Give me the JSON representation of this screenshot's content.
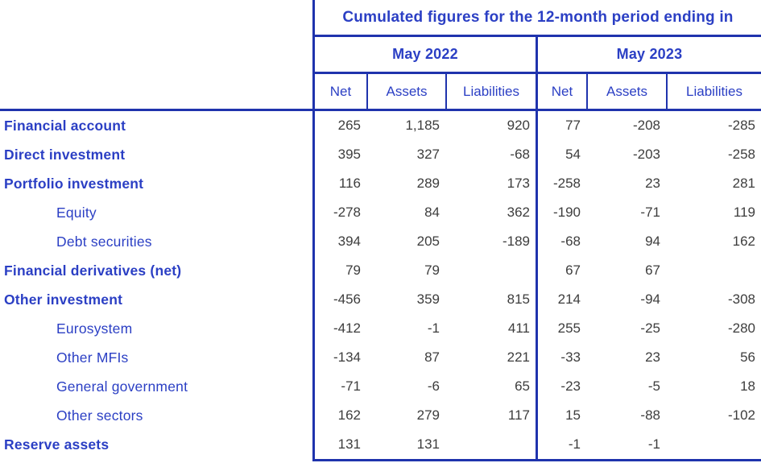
{
  "table": {
    "title": "Cumulated figures for the 12-month period ending in",
    "periods": [
      {
        "label": "May 2022"
      },
      {
        "label": "May 2023"
      }
    ],
    "columns": [
      "Net",
      "Assets",
      "Liabilities"
    ]
  },
  "rows": [
    {
      "label": "Financial account",
      "cells": [
        "265",
        "1,185",
        "920",
        "77",
        "-208",
        "-285"
      ]
    },
    {
      "label": "Direct investment",
      "cells": [
        "395",
        "327",
        "-68",
        "54",
        "-203",
        "-258"
      ]
    },
    {
      "label": "Portfolio investment",
      "cells": [
        "116",
        "289",
        "173",
        "-258",
        "23",
        "281"
      ]
    },
    {
      "label": "Equity",
      "cells": [
        "-278",
        "84",
        "362",
        "-190",
        "-71",
        "119"
      ]
    },
    {
      "label": "Debt securities",
      "cells": [
        "394",
        "205",
        "-189",
        "-68",
        "94",
        "162"
      ]
    },
    {
      "label": "Financial derivatives (net)",
      "cells": [
        "79",
        "79",
        "",
        "67",
        "67",
        ""
      ]
    },
    {
      "label": "Other investment",
      "cells": [
        "-456",
        "359",
        "815",
        "214",
        "-94",
        "-308"
      ]
    },
    {
      "label": "Eurosystem",
      "cells": [
        "-412",
        "-1",
        "411",
        "255",
        "-25",
        "-280"
      ]
    },
    {
      "label": "Other MFIs",
      "cells": [
        "-134",
        "87",
        "221",
        "-33",
        "23",
        "56"
      ]
    },
    {
      "label": "General government",
      "cells": [
        "-71",
        "-6",
        "65",
        "-23",
        "-5",
        "18"
      ]
    },
    {
      "label": "Other sectors",
      "cells": [
        "162",
        "279",
        "117",
        "15",
        "-88",
        "-102"
      ]
    },
    {
      "label": "Reserve assets",
      "cells": [
        "131",
        "131",
        "",
        "-1",
        "-1",
        ""
      ]
    }
  ],
  "colors": {
    "text_blue": "#2b3fc4",
    "line_blue": "#1f33ad",
    "number_gray": "#3d3d3d"
  }
}
